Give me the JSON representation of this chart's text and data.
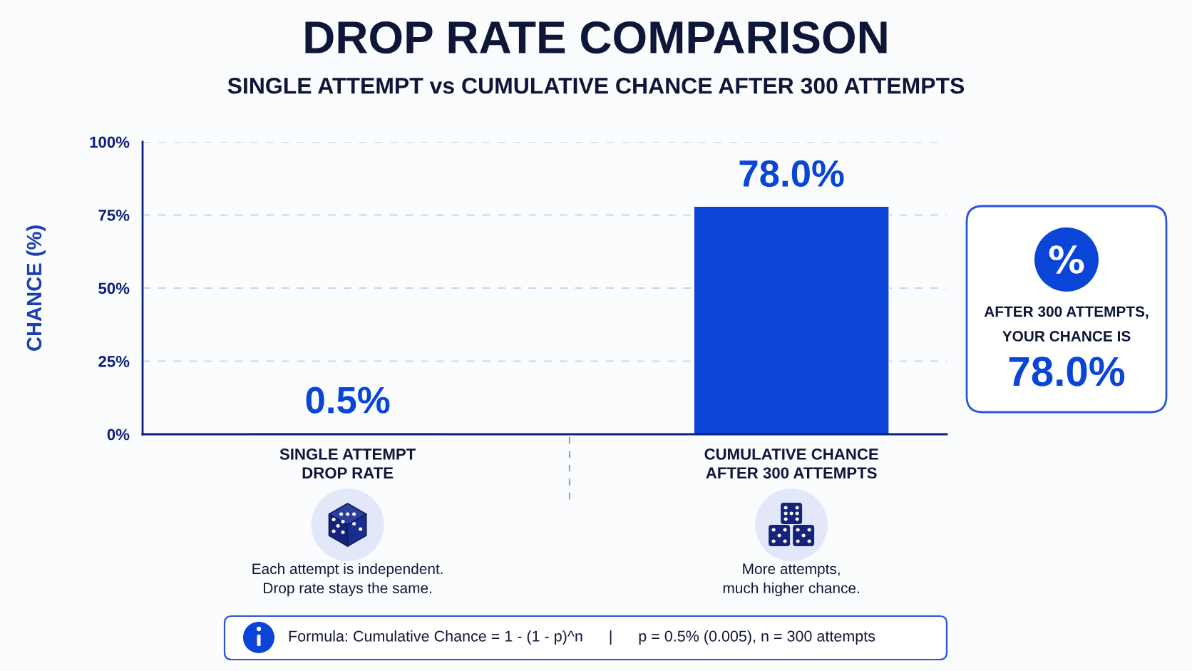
{
  "chart_data": {
    "type": "bar",
    "title": "DROP RATE COMPARISON",
    "subtitle": "SINGLE ATTEMPT vs CUMULATIVE CHANCE AFTER 300 ATTEMPTS",
    "ylabel": "CHANCE (%)",
    "categories": [
      "SINGLE ATTEMPT\nDROP RATE",
      "CUMULATIVE CHANCE\nAFTER 300 ATTEMPTS"
    ],
    "values": [
      0.5,
      78.0
    ],
    "color": "#0a45d8",
    "value_labels": [
      "0.5%",
      "78.0%"
    ],
    "ylim": [
      0,
      100
    ],
    "yticks": [
      {
        "value": 0,
        "label": "0%"
      },
      {
        "value": 25,
        "label": "25%"
      },
      {
        "value": 50,
        "label": "50%"
      },
      {
        "value": 75,
        "label": "75%"
      },
      {
        "value": 100,
        "label": "100%"
      }
    ],
    "grid": "y",
    "annotations": [
      "AFTER 300 ATTEMPTS,\nYOUR CHANCE IS",
      "78.0%",
      "Each attempt is independent.\nDrop rate stays the same.",
      "More attempts,\nmuch higher chance.",
      "Formula: Cumulative Chance = 1 - (1 - p)^n      |      p = 0.5% (0.005), n = 300 attempts"
    ]
  }
}
